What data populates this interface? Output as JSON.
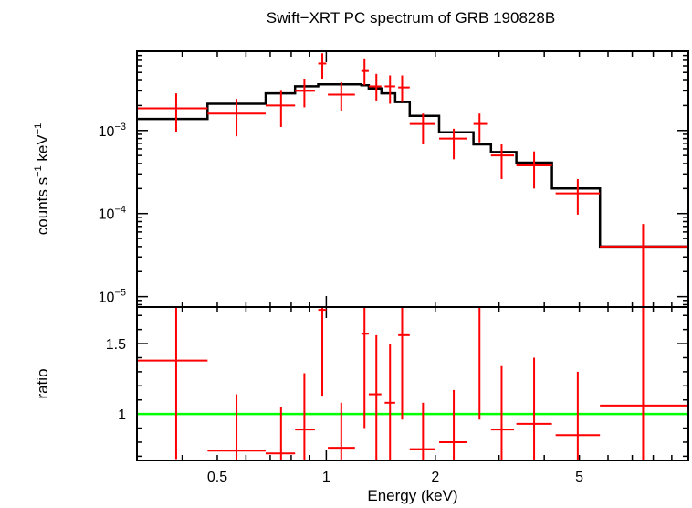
{
  "chart_data": [
    {
      "type": "scatter",
      "title": "Swift−XRT PC spectrum of GRB 190828B",
      "ylabel_parts": {
        "pre": "counts s",
        "exp1": "−1",
        "mid": " keV",
        "exp2": "−1"
      },
      "x_scale": "log",
      "y_scale": "log",
      "xlim": [
        0.3,
        10
      ],
      "ylim": [
        7.5e-06,
        0.009
      ],
      "y_ticks": [
        {
          "value": 0.001,
          "base": "10",
          "exp": "−3"
        },
        {
          "value": 0.0001,
          "base": "10",
          "exp": "−4"
        },
        {
          "value": 1e-05,
          "base": "10",
          "exp": "−5"
        }
      ],
      "data_color": "#ff0000",
      "model_color": "#000000",
      "data": [
        {
          "x": 0.385,
          "x_lo": 0.3,
          "x_hi": 0.47,
          "y": 0.00185,
          "y_lo": 0.00095,
          "y_hi": 0.0028
        },
        {
          "x": 0.565,
          "x_lo": 0.47,
          "x_hi": 0.68,
          "y": 0.0016,
          "y_lo": 0.00085,
          "y_hi": 0.0024
        },
        {
          "x": 0.75,
          "x_lo": 0.68,
          "x_hi": 0.82,
          "y": 0.002,
          "y_lo": 0.0011,
          "y_hi": 0.003
        },
        {
          "x": 0.87,
          "x_lo": 0.82,
          "x_hi": 0.93,
          "y": 0.003,
          "y_lo": 0.0019,
          "y_hi": 0.0042
        },
        {
          "x": 0.975,
          "x_lo": 0.95,
          "x_hi": 1.0,
          "y": 0.0064,
          "y_lo": 0.0041,
          "y_hi": 0.0085
        },
        {
          "x": 1.1,
          "x_lo": 1.01,
          "x_hi": 1.2,
          "y": 0.0027,
          "y_lo": 0.0017,
          "y_hi": 0.0038
        },
        {
          "x": 1.275,
          "x_lo": 1.25,
          "x_hi": 1.31,
          "y": 0.0052,
          "y_lo": 0.0035,
          "y_hi": 0.0072
        },
        {
          "x": 1.375,
          "x_lo": 1.31,
          "x_hi": 1.42,
          "y": 0.0034,
          "y_lo": 0.0023,
          "y_hi": 0.0048
        },
        {
          "x": 1.5,
          "x_lo": 1.45,
          "x_hi": 1.55,
          "y": 0.0034,
          "y_lo": 0.0021,
          "y_hi": 0.0046
        },
        {
          "x": 1.62,
          "x_lo": 1.58,
          "x_hi": 1.7,
          "y": 0.0033,
          "y_lo": 0.0022,
          "y_hi": 0.0046
        },
        {
          "x": 1.85,
          "x_lo": 1.7,
          "x_hi": 2.0,
          "y": 0.0012,
          "y_lo": 0.00068,
          "y_hi": 0.0016
        },
        {
          "x": 2.25,
          "x_lo": 2.05,
          "x_hi": 2.45,
          "y": 0.0008,
          "y_lo": 0.00045,
          "y_hi": 0.00105
        },
        {
          "x": 2.65,
          "x_lo": 2.55,
          "x_hi": 2.78,
          "y": 0.0012,
          "y_lo": 0.00072,
          "y_hi": 0.0016
        },
        {
          "x": 3.05,
          "x_lo": 2.85,
          "x_hi": 3.3,
          "y": 0.0005,
          "y_lo": 0.00026,
          "y_hi": 0.00068
        },
        {
          "x": 3.75,
          "x_lo": 3.35,
          "x_hi": 4.2,
          "y": 0.00038,
          "y_lo": 0.0002,
          "y_hi": 0.00056
        },
        {
          "x": 4.95,
          "x_lo": 4.3,
          "x_hi": 5.7,
          "y": 0.000175,
          "y_lo": 9.7e-05,
          "y_hi": 0.00026
        },
        {
          "x": 7.5,
          "x_lo": 5.7,
          "x_hi": 10.0,
          "y": 4e-05,
          "y_lo": 7.5e-06,
          "y_hi": 7.5e-05
        }
      ],
      "model": [
        {
          "x_lo": 0.3,
          "x_hi": 0.47,
          "y": 0.00138
        },
        {
          "x_lo": 0.47,
          "x_hi": 0.68,
          "y": 0.0021
        },
        {
          "x_lo": 0.68,
          "x_hi": 0.82,
          "y": 0.0028
        },
        {
          "x_lo": 0.82,
          "x_hi": 0.95,
          "y": 0.0034
        },
        {
          "x_lo": 0.95,
          "x_hi": 1.25,
          "y": 0.0036
        },
        {
          "x_lo": 1.25,
          "x_hi": 1.31,
          "y": 0.0035
        },
        {
          "x_lo": 1.31,
          "x_hi": 1.42,
          "y": 0.0032
        },
        {
          "x_lo": 1.42,
          "x_hi": 1.55,
          "y": 0.0028
        },
        {
          "x_lo": 1.55,
          "x_hi": 1.7,
          "y": 0.0022
        },
        {
          "x_lo": 1.7,
          "x_hi": 2.05,
          "y": 0.0015
        },
        {
          "x_lo": 2.05,
          "x_hi": 2.55,
          "y": 0.00095
        },
        {
          "x_lo": 2.55,
          "x_hi": 2.85,
          "y": 0.00068
        },
        {
          "x_lo": 2.85,
          "x_hi": 3.35,
          "y": 0.00055
        },
        {
          "x_lo": 3.35,
          "x_hi": 4.2,
          "y": 0.00041
        },
        {
          "x_lo": 4.2,
          "x_hi": 5.7,
          "y": 0.0002
        },
        {
          "x_lo": 5.7,
          "x_hi": 10.0,
          "y": 4e-05
        }
      ]
    },
    {
      "type": "scatter",
      "ylabel": "ratio",
      "xlabel": "Energy (keV)",
      "x_scale": "log",
      "xlim": [
        0.3,
        10
      ],
      "ylim": [
        0.67,
        1.76
      ],
      "y_ticks": [
        {
          "value": 1,
          "label": "1"
        },
        {
          "value": 1.5,
          "label": "1.5"
        }
      ],
      "x_ticks": [
        {
          "value": 0.5,
          "label": "0.5"
        },
        {
          "value": 1,
          "label": "1"
        },
        {
          "value": 2,
          "label": "2"
        },
        {
          "value": 5,
          "label": "5"
        }
      ],
      "reference_value": 1,
      "reference_color": "#00ff00",
      "data_color": "#ff0000",
      "data": [
        {
          "x": 0.385,
          "x_lo": 0.3,
          "x_hi": 0.47,
          "y": 1.38,
          "y_lo": 0.68,
          "y_hi": 1.76
        },
        {
          "x": 0.565,
          "x_lo": 0.47,
          "x_hi": 0.68,
          "y": 0.74,
          "y_lo": 0.67,
          "y_hi": 1.14
        },
        {
          "x": 0.75,
          "x_lo": 0.68,
          "x_hi": 0.82,
          "y": 0.72,
          "y_lo": 0.67,
          "y_hi": 1.05
        },
        {
          "x": 0.87,
          "x_lo": 0.82,
          "x_hi": 0.93,
          "y": 0.89,
          "y_lo": 0.67,
          "y_hi": 1.29
        },
        {
          "x": 0.975,
          "x_lo": 0.95,
          "x_hi": 1.0,
          "y": 1.74,
          "y_lo": 1.13,
          "y_hi": 1.76
        },
        {
          "x": 1.1,
          "x_lo": 1.01,
          "x_hi": 1.2,
          "y": 0.76,
          "y_lo": 0.67,
          "y_hi": 1.08
        },
        {
          "x": 1.275,
          "x_lo": 1.25,
          "x_hi": 1.31,
          "y": 1.57,
          "y_lo": 0.9,
          "y_hi": 1.76
        },
        {
          "x": 1.375,
          "x_lo": 1.31,
          "x_hi": 1.42,
          "y": 1.14,
          "y_lo": 0.67,
          "y_hi": 1.56
        },
        {
          "x": 1.5,
          "x_lo": 1.45,
          "x_hi": 1.55,
          "y": 1.08,
          "y_lo": 0.67,
          "y_hi": 1.5
        },
        {
          "x": 1.62,
          "x_lo": 1.58,
          "x_hi": 1.7,
          "y": 1.56,
          "y_lo": 0.96,
          "y_hi": 1.76
        },
        {
          "x": 1.85,
          "x_lo": 1.7,
          "x_hi": 2.0,
          "y": 0.75,
          "y_lo": 0.67,
          "y_hi": 1.08
        },
        {
          "x": 2.25,
          "x_lo": 2.05,
          "x_hi": 2.45,
          "y": 0.8,
          "y_lo": 0.67,
          "y_hi": 1.17
        },
        {
          "x": 2.65,
          "x_lo": 2.55,
          "x_hi": 2.78,
          "y": 1.76,
          "y_lo": 0.96,
          "y_hi": 1.76
        },
        {
          "x": 3.05,
          "x_lo": 2.85,
          "x_hi": 3.3,
          "y": 0.89,
          "y_lo": 0.67,
          "y_hi": 1.34
        },
        {
          "x": 3.75,
          "x_lo": 3.35,
          "x_hi": 4.2,
          "y": 0.93,
          "y_lo": 0.67,
          "y_hi": 1.4
        },
        {
          "x": 4.95,
          "x_lo": 4.3,
          "x_hi": 5.7,
          "y": 0.85,
          "y_lo": 0.67,
          "y_hi": 1.3
        },
        {
          "x": 7.5,
          "x_lo": 5.7,
          "x_hi": 10.0,
          "y": 1.06,
          "y_lo": 0.67,
          "y_hi": 1.76
        }
      ]
    }
  ]
}
